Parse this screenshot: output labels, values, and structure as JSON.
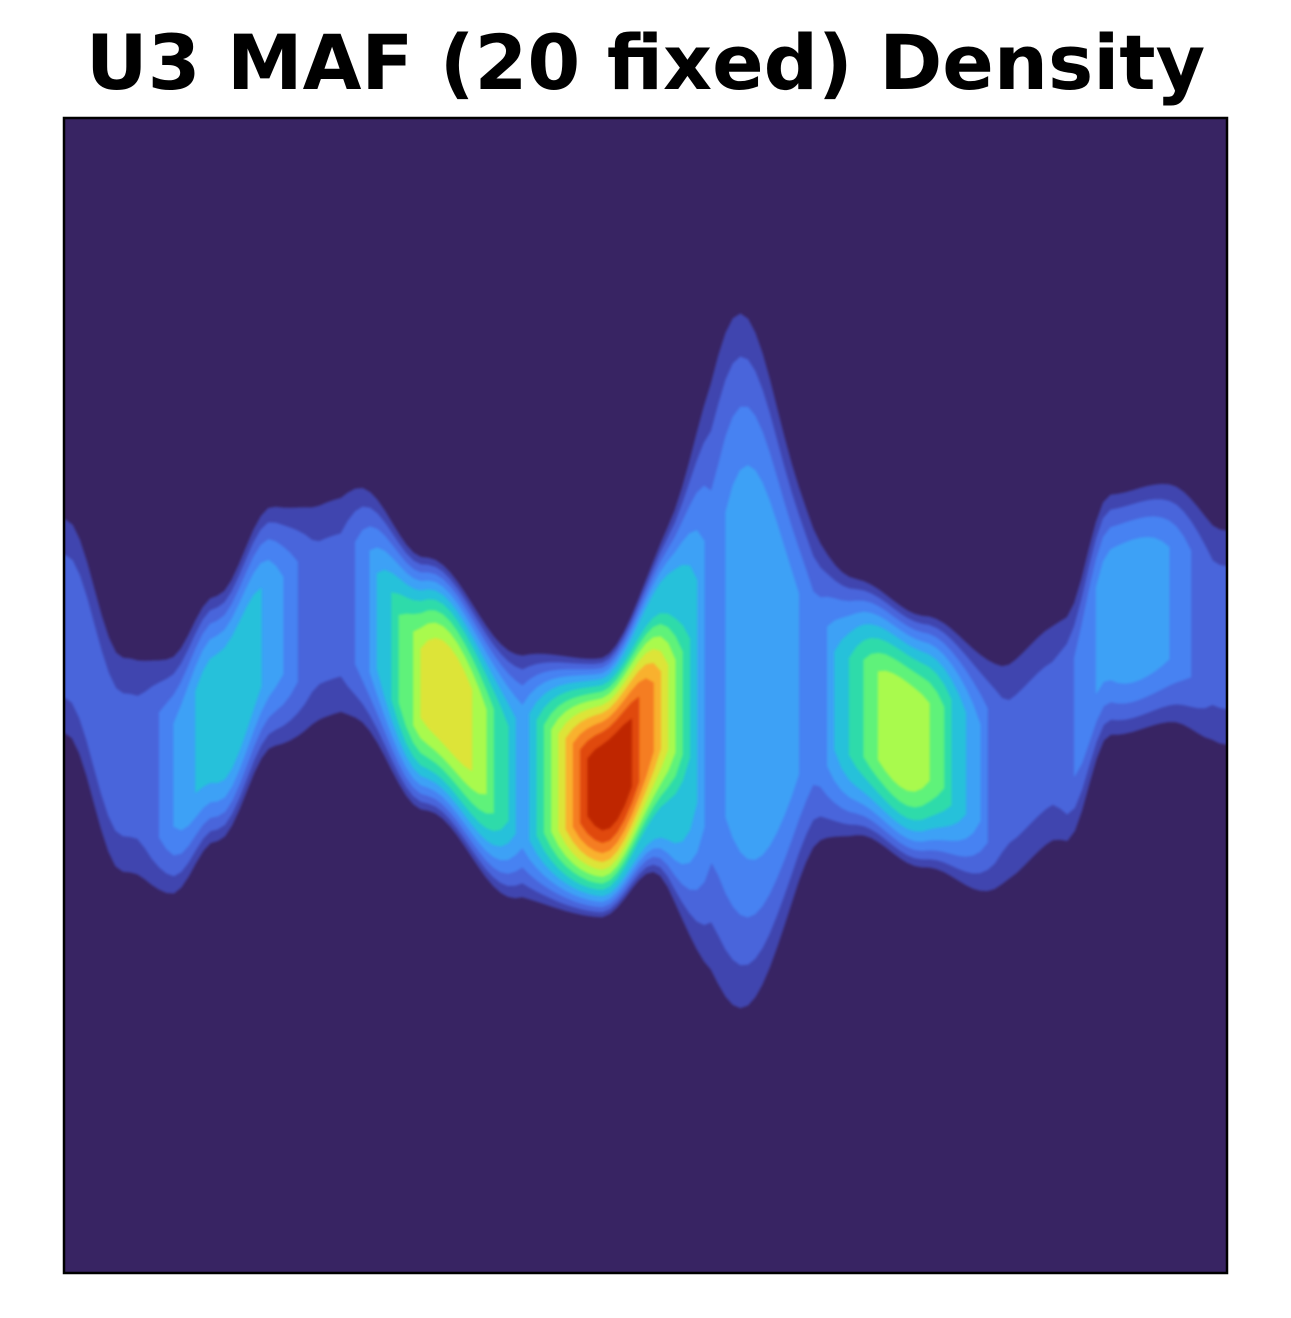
{
  "chart_data": {
    "type": "heatmap",
    "title": "U3 MAF (20 fixed) Density",
    "xlabel": "",
    "ylabel": "",
    "ticks": "none",
    "grid": false,
    "legend": "none",
    "colormap": "turbo",
    "background_color": "#382463",
    "levels": [
      "#382463",
      "#4145AF",
      "#4865DB",
      "#4682F2",
      "#3EA1F6",
      "#25C1DA",
      "#2EDBAA",
      "#5EF27A",
      "#A9FA4D",
      "#DDE437",
      "#F9B12E",
      "#F57D22",
      "#E0490F",
      "#BF2606",
      "#8E0F01"
    ],
    "ridge": {
      "description_x": "horizontal position along the band, 0 to 1",
      "centerline_y": [
        [
          0.0,
          0.44
        ],
        [
          0.05,
          0.56
        ],
        [
          0.09,
          0.57
        ],
        [
          0.13,
          0.52
        ],
        [
          0.18,
          0.44
        ],
        [
          0.25,
          0.42
        ],
        [
          0.31,
          0.49
        ],
        [
          0.39,
          0.57
        ],
        [
          0.46,
          0.58
        ],
        [
          0.52,
          0.51
        ],
        [
          0.58,
          0.47
        ],
        [
          0.63,
          0.49
        ],
        [
          0.68,
          0.51
        ],
        [
          0.74,
          0.54
        ],
        [
          0.8,
          0.57
        ],
        [
          0.86,
          0.53
        ],
        [
          0.9,
          0.43
        ],
        [
          0.95,
          0.42
        ],
        [
          1.0,
          0.45
        ]
      ]
    },
    "peaks": [
      {
        "x": 0.47,
        "y": 0.56,
        "level": 14
      },
      {
        "x": 0.33,
        "y": 0.46,
        "level": 10
      },
      {
        "x": 0.72,
        "y": 0.53,
        "level": 9
      },
      {
        "x": 0.14,
        "y": 0.52,
        "level": 6
      },
      {
        "x": 0.6,
        "y": 0.52,
        "level": 5
      },
      {
        "x": 0.92,
        "y": 0.43,
        "level": 5
      }
    ]
  }
}
